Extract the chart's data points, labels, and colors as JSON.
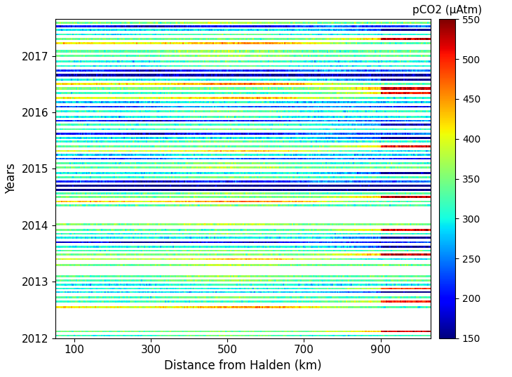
{
  "xlabel": "Distance from Halden (km)",
  "ylabel": "Years",
  "colorbar_label": "pCO2 (μAtm)",
  "xlim": [
    50,
    1030
  ],
  "ylim": [
    2012.0,
    2017.65
  ],
  "vmin": 150,
  "vmax": 550,
  "xticks": [
    100,
    300,
    500,
    700,
    900
  ],
  "yticks": [
    2012,
    2013,
    2014,
    2015,
    2016,
    2017
  ],
  "colorbar_ticks": [
    150,
    200,
    250,
    300,
    350,
    400,
    450,
    500,
    550
  ],
  "n_x": 300,
  "background_color": "#ffffff",
  "seed": 12345,
  "trips_per_year": 18,
  "band_thickness": 0.028
}
